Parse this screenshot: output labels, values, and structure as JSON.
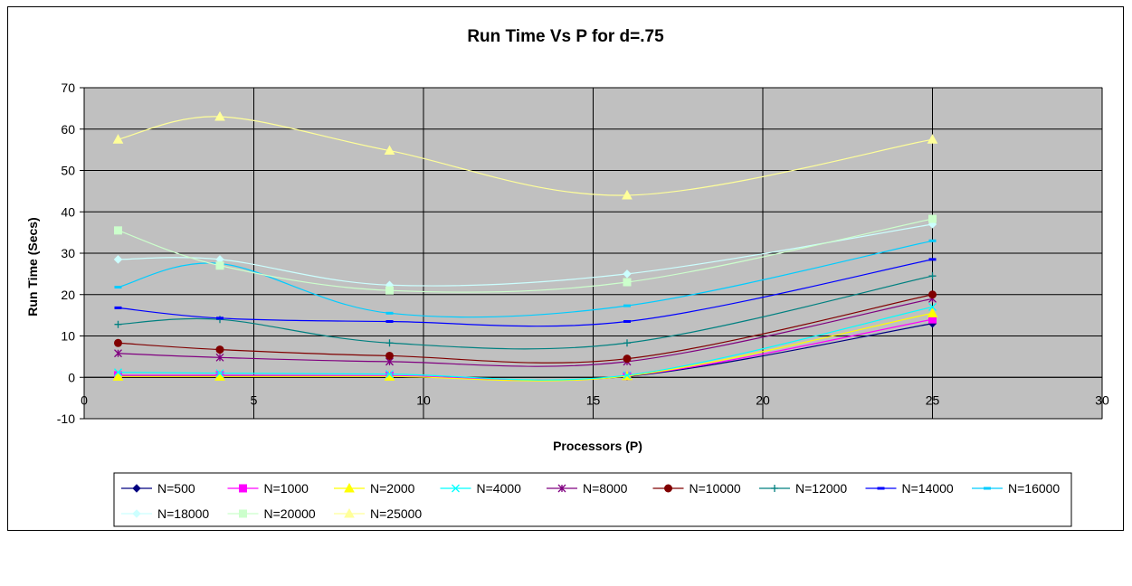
{
  "chart_data": {
    "type": "line",
    "title": "Run Time Vs P for d=.75",
    "xlabel": "Processors (P)",
    "ylabel": "Run Time (Secs)",
    "xlim": [
      0,
      30
    ],
    "ylim": [
      -10,
      70
    ],
    "xticks": [
      "0",
      "5",
      "10",
      "15",
      "20",
      "25",
      "30"
    ],
    "yticks": [
      "-10",
      "0",
      "10",
      "20",
      "30",
      "40",
      "50",
      "60",
      "70"
    ],
    "x": [
      1,
      4,
      9,
      16,
      25
    ],
    "grid": true,
    "legend_position": "bottom",
    "series": [
      {
        "name": "N=500",
        "color": "#000080",
        "marker": "diamond",
        "values": [
          0.3,
          0.3,
          0.3,
          0.2,
          13
        ]
      },
      {
        "name": "N=1000",
        "color": "#FF00FF",
        "marker": "square",
        "values": [
          0.5,
          0.5,
          0.4,
          0.3,
          14
        ]
      },
      {
        "name": "N=2000",
        "color": "#FFFF00",
        "marker": "triangle",
        "values": [
          0.2,
          0.2,
          0.2,
          0.3,
          15.5
        ]
      },
      {
        "name": "N=4000",
        "color": "#00FFFF",
        "marker": "x",
        "values": [
          1.2,
          1.0,
          0.8,
          0.5,
          17
        ]
      },
      {
        "name": "N=8000",
        "color": "#800080",
        "marker": "star",
        "values": [
          5.8,
          4.8,
          3.8,
          3.8,
          19
        ]
      },
      {
        "name": "N=10000",
        "color": "#800000",
        "marker": "circle",
        "values": [
          8.3,
          6.7,
          5.2,
          4.5,
          20
        ]
      },
      {
        "name": "N=12000",
        "color": "#008080",
        "marker": "plus",
        "values": [
          12.8,
          14.0,
          8.3,
          8.3,
          24.5
        ]
      },
      {
        "name": "N=14000",
        "color": "#0000FF",
        "marker": "dash",
        "values": [
          16.8,
          14.3,
          13.5,
          13.5,
          28.5
        ]
      },
      {
        "name": "N=16000",
        "color": "#00CCFF",
        "marker": "dash",
        "values": [
          21.8,
          27.5,
          15.5,
          17.3,
          33
        ]
      },
      {
        "name": "N=18000",
        "color": "#CCFFFF",
        "marker": "diamond",
        "values": [
          28.5,
          28.5,
          22.3,
          25.0,
          37
        ]
      },
      {
        "name": "N=20000",
        "color": "#CCFFCC",
        "marker": "square",
        "values": [
          35.5,
          27.0,
          21.0,
          23.0,
          38.3
        ]
      },
      {
        "name": "N=25000",
        "color": "#FFFF99",
        "marker": "triangle",
        "values": [
          57.5,
          63.0,
          54.8,
          44.0,
          57.5
        ]
      }
    ]
  }
}
